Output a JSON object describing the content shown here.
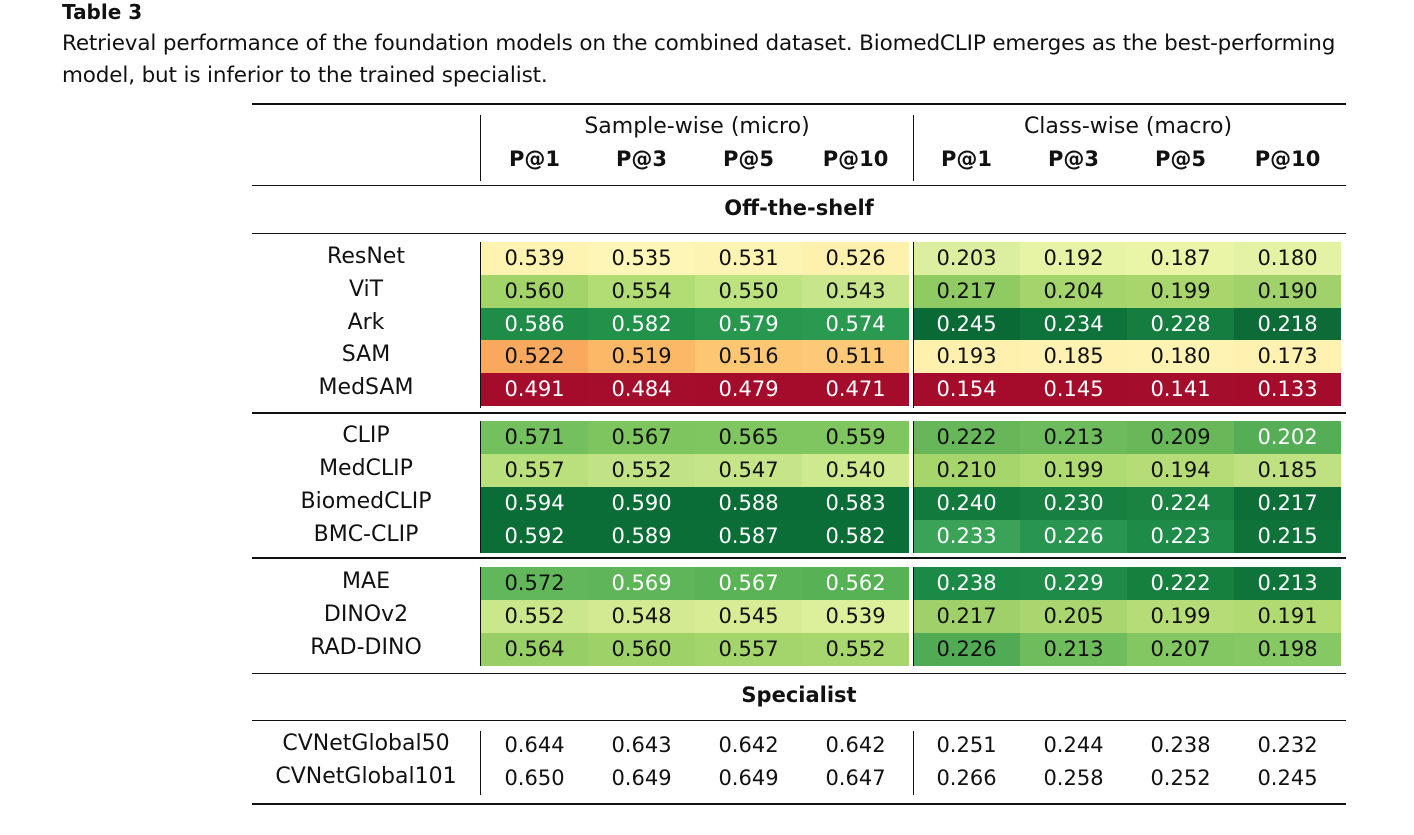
{
  "table": {
    "title": "Table 3",
    "caption": "Retrieval performance of the foundation models on the combined dataset. BiomedCLIP emerges as the best-performing model, but is inferior to the trained specialist.",
    "group_headers": [
      "Sample-wise (micro)",
      "Class-wise (macro)"
    ],
    "columns": [
      "P@1",
      "P@3",
      "P@5",
      "P@10",
      "P@1",
      "P@3",
      "P@5",
      "P@10"
    ],
    "sections": [
      "Off-the-shelf",
      "Specialist"
    ],
    "rows": [
      {
        "label": "ResNet",
        "values": [
          "0.539",
          "0.535",
          "0.531",
          "0.526",
          "0.203",
          "0.192",
          "0.187",
          "0.180"
        ],
        "bg": [
          "#fef3b0",
          "#fef6b7",
          "#fdf4b4",
          "#fef1ad",
          "#dcefa0",
          "#e7f4a6",
          "#eaf5a7",
          "#e3f2a4"
        ],
        "fg": [
          "#111",
          "#111",
          "#111",
          "#111",
          "#111",
          "#111",
          "#111",
          "#111"
        ]
      },
      {
        "label": "ViT",
        "values": [
          "0.560",
          "0.554",
          "0.550",
          "0.543",
          "0.217",
          "0.204",
          "0.199",
          "0.190"
        ],
        "bg": [
          "#a2d46a",
          "#b2dc74",
          "#bde280",
          "#c7e58a",
          "#8fca63",
          "#a4d46b",
          "#a8d66d",
          "#a0d16a"
        ],
        "fg": [
          "#111",
          "#111",
          "#111",
          "#111",
          "#111",
          "#111",
          "#111",
          "#111"
        ]
      },
      {
        "label": "Ark",
        "values": [
          "0.586",
          "0.582",
          "0.579",
          "0.574",
          "0.245",
          "0.234",
          "0.228",
          "0.218"
        ],
        "bg": [
          "#1f8d48",
          "#22914a",
          "#28984f",
          "#2b9a51",
          "#0a6a35",
          "#0e733a",
          "#167d40",
          "#0c6b36"
        ],
        "fg": [
          "#fff",
          "#fff",
          "#fff",
          "#fff",
          "#fff",
          "#fff",
          "#fff",
          "#fff"
        ]
      },
      {
        "label": "SAM",
        "values": [
          "0.522",
          "0.519",
          "0.516",
          "0.511",
          "0.193",
          "0.185",
          "0.180",
          "0.173"
        ],
        "bg": [
          "#f9a95e",
          "#fbb967",
          "#fcc672",
          "#fdc979",
          "#fff0ad",
          "#fff1b0",
          "#fff3b4",
          "#fff2b0"
        ],
        "fg": [
          "#111",
          "#111",
          "#111",
          "#111",
          "#111",
          "#111",
          "#111",
          "#111"
        ]
      },
      {
        "label": "MedSAM",
        "values": [
          "0.491",
          "0.484",
          "0.479",
          "0.471",
          "0.154",
          "0.145",
          "0.141",
          "0.133"
        ],
        "bg": [
          "#a50c2c",
          "#a50d2c",
          "#a50c2c",
          "#a50c2c",
          "#a50c2c",
          "#a50c2c",
          "#a50d2c",
          "#a50c2c"
        ],
        "fg": [
          "#fff",
          "#fff",
          "#fff",
          "#fff",
          "#fff",
          "#fff",
          "#fff",
          "#fff"
        ]
      },
      {
        "label": "CLIP",
        "values": [
          "0.571",
          "0.567",
          "0.565",
          "0.559",
          "0.222",
          "0.213",
          "0.209",
          "0.202"
        ],
        "bg": [
          "#74bf5e",
          "#7ec45f",
          "#7fc660",
          "#7fc660",
          "#67b75a",
          "#6dbb5c",
          "#68b85a",
          "#55ad56"
        ],
        "fg": [
          "#111",
          "#111",
          "#111",
          "#111",
          "#111",
          "#111",
          "#111",
          "#fff"
        ]
      },
      {
        "label": "MedCLIP",
        "values": [
          "0.557",
          "0.552",
          "0.547",
          "0.540",
          "0.210",
          "0.199",
          "0.194",
          "0.185"
        ],
        "bg": [
          "#b9e07c",
          "#c2e385",
          "#c6e588",
          "#cfe98f",
          "#a6d56c",
          "#b0da72",
          "#b5dc76",
          "#c0e182"
        ],
        "fg": [
          "#111",
          "#111",
          "#111",
          "#111",
          "#111",
          "#111",
          "#111",
          "#111"
        ]
      },
      {
        "label": "BiomedCLIP",
        "values": [
          "0.594",
          "0.590",
          "0.588",
          "0.583",
          "0.240",
          "0.230",
          "0.224",
          "0.217"
        ],
        "bg": [
          "#0a6c36",
          "#0a6c36",
          "#0a6c36",
          "#0a6c36",
          "#137a3e",
          "#178040",
          "#1a8342",
          "#0d6e37"
        ],
        "fg": [
          "#fff",
          "#fff",
          "#fff",
          "#fff",
          "#fff",
          "#fff",
          "#fff",
          "#fff"
        ]
      },
      {
        "label": "BMC-CLIP",
        "values": [
          "0.592",
          "0.589",
          "0.587",
          "0.582",
          "0.233",
          "0.226",
          "0.223",
          "0.215"
        ],
        "bg": [
          "#0b6e37",
          "#0b6e37",
          "#0b6e37",
          "#0b6e37",
          "#3aa358",
          "#289650",
          "#1e8b48",
          "#0f7339"
        ],
        "fg": [
          "#fff",
          "#fff",
          "#fff",
          "#fff",
          "#fff",
          "#fff",
          "#fff",
          "#fff"
        ]
      },
      {
        "label": "MAE",
        "values": [
          "0.572",
          "0.569",
          "0.567",
          "0.562"
        ],
        "bg": [
          "#62b75a",
          "#5eb658",
          "#5ab456",
          "#56b255",
          "#1b8a47",
          "#1e8c48",
          "#16803f",
          "#0f7439"
        ],
        "fg": [
          "#111",
          "#fff",
          "#fff",
          "#fff",
          "#fff",
          "#fff",
          "#fff",
          "#fff"
        ],
        "values_macro": [
          "0.238",
          "0.229",
          "0.222",
          "0.213"
        ]
      },
      {
        "label": "DINOv2",
        "values": [
          "0.552",
          "0.548",
          "0.545",
          "0.539",
          "0.217",
          "0.205",
          "0.199",
          "0.191"
        ],
        "bg": [
          "#cbe78b",
          "#d3ea92",
          "#d7ec95",
          "#dcef9a",
          "#9fd069",
          "#a9d66e",
          "#b5dc76",
          "#b1da73"
        ],
        "fg": [
          "#111",
          "#111",
          "#111",
          "#111",
          "#111",
          "#111",
          "#111",
          "#111"
        ]
      },
      {
        "label": "RAD-DINO",
        "values": [
          "0.564",
          "0.560",
          "0.557",
          "0.552",
          "0.226",
          "0.213",
          "0.207",
          "0.198"
        ],
        "bg": [
          "#97cf66",
          "#9ed269",
          "#a4d46c",
          "#a8d66e",
          "#51ab55",
          "#6fbc5c",
          "#83c762",
          "#86c863"
        ],
        "fg": [
          "#111",
          "#111",
          "#111",
          "#111",
          "#111",
          "#111",
          "#111",
          "#111"
        ]
      }
    ],
    "specialist_rows": [
      {
        "label": "CVNetGlobal50",
        "values": [
          "0.644",
          "0.643",
          "0.642",
          "0.642",
          "0.251",
          "0.244",
          "0.238",
          "0.232"
        ]
      },
      {
        "label": "CVNetGlobal101",
        "values": [
          "0.650",
          "0.649",
          "0.649",
          "0.647",
          "0.266",
          "0.258",
          "0.252",
          "0.245"
        ]
      }
    ]
  }
}
